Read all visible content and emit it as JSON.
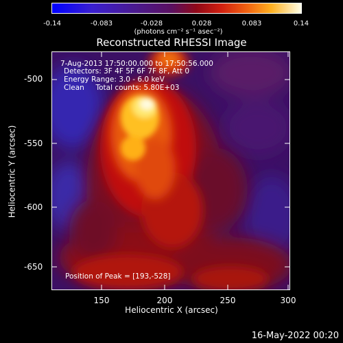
{
  "colorbar": {
    "ticks": [
      "-0.14",
      "-0.083",
      "-0.028",
      "0.028",
      "0.083",
      "0.14"
    ],
    "units": "(photons cm⁻² s⁻¹ asec⁻²)"
  },
  "title": "Reconstructed RHESSI Image",
  "annotations": {
    "time": "7-Aug-2013 17:50:00.000 to 17:50:56.000",
    "detectors": "Detectors: 3F 4F 5F 6F 7F 8F, Att 0",
    "energy": "Energy Range: 3.0 - 6.0 keV",
    "clean": "Clean     Total counts: 5.80E+03",
    "peak": "Position of Peak = [193,-528]"
  },
  "axes": {
    "xlabel": "Heliocentric X (arcsec)",
    "ylabel": "Heliocentric Y (arcsec)",
    "xticks": [
      "150",
      "200",
      "250",
      "300"
    ],
    "yticks": [
      "-500",
      "-550",
      "-600",
      "-650"
    ]
  },
  "footer": {
    "date": "16-May-2022 00:20"
  },
  "colors": {
    "background": "#000000",
    "text": "#ffffff"
  }
}
